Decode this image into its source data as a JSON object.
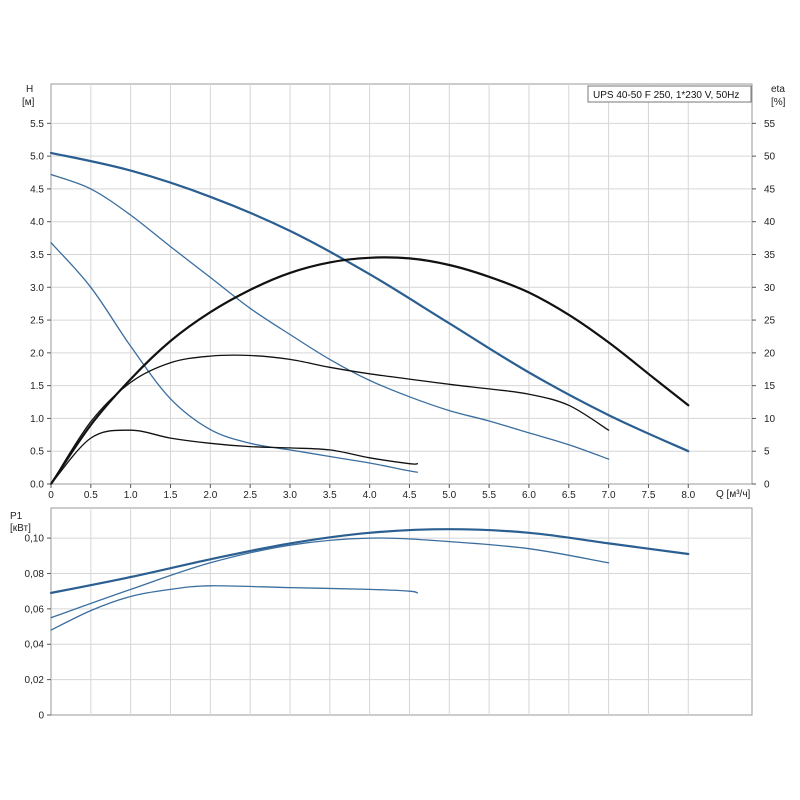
{
  "chart_data": [
    {
      "type": "line",
      "id": "head_efficiency",
      "legend_box": "UPS 40-50 F 250, 1*230 V, 50Hz",
      "legend_position": "top-right",
      "ylabel_left": [
        "H",
        "[м]"
      ],
      "ylabel_right": [
        "eta",
        "[%]"
      ],
      "xlabel": "Q [м³/ч]",
      "xlim": [
        0,
        8.8
      ],
      "ylim_left": [
        0,
        6.1
      ],
      "ylim_right": [
        0,
        61
      ],
      "grid": true,
      "x_ticks": [
        "0",
        "0.5",
        "1.0",
        "1.5",
        "2.0",
        "2.5",
        "3.0",
        "3.5",
        "4.0",
        "4.5",
        "5.0",
        "5.5",
        "6.0",
        "6.5",
        "7.0",
        "7.5",
        "8.0"
      ],
      "x_tick_values": [
        0,
        0.5,
        1.0,
        1.5,
        2.0,
        2.5,
        3.0,
        3.5,
        4.0,
        4.5,
        5.0,
        5.5,
        6.0,
        6.5,
        7.0,
        7.5,
        8.0
      ],
      "y_ticks_left": [
        "0.0",
        "0.5",
        "1.0",
        "1.5",
        "2.0",
        "2.5",
        "3.0",
        "3.5",
        "4.0",
        "4.5",
        "5.0",
        "5.5"
      ],
      "y_tick_values_left": [
        0,
        0.5,
        1.0,
        1.5,
        2.0,
        2.5,
        3.0,
        3.5,
        4.0,
        4.5,
        5.0,
        5.5
      ],
      "y_ticks_right": [
        "0",
        "5",
        "10",
        "15",
        "20",
        "25",
        "30",
        "35",
        "40",
        "45",
        "50",
        "55"
      ],
      "y_tick_values_right": [
        0,
        5,
        10,
        15,
        20,
        25,
        30,
        35,
        40,
        45,
        50,
        55
      ],
      "series": [
        {
          "axis": "left",
          "color": "#2b5f91",
          "width": 2.2,
          "points": [
            [
              0,
              5.05
            ],
            [
              1,
              4.78
            ],
            [
              2,
              4.38
            ],
            [
              3,
              3.86
            ],
            [
              4,
              3.2
            ],
            [
              5,
              2.45
            ],
            [
              6,
              1.7
            ],
            [
              7,
              1.05
            ],
            [
              8,
              0.5
            ]
          ]
        },
        {
          "axis": "left",
          "color": "#3a6e9f",
          "width": 1.3,
          "points": [
            [
              0,
              4.72
            ],
            [
              0.5,
              4.5
            ],
            [
              1,
              4.1
            ],
            [
              1.5,
              3.62
            ],
            [
              2,
              3.15
            ],
            [
              2.5,
              2.68
            ],
            [
              3,
              2.28
            ],
            [
              3.5,
              1.9
            ],
            [
              4,
              1.58
            ],
            [
              4.5,
              1.33
            ],
            [
              5,
              1.12
            ],
            [
              5.5,
              0.96
            ],
            [
              6,
              0.78
            ],
            [
              6.5,
              0.6
            ],
            [
              7,
              0.38
            ]
          ]
        },
        {
          "axis": "left",
          "color": "#3a6e9f",
          "width": 1.3,
          "points": [
            [
              0,
              3.68
            ],
            [
              0.5,
              3.0
            ],
            [
              1,
              2.1
            ],
            [
              1.5,
              1.3
            ],
            [
              2,
              0.83
            ],
            [
              2.5,
              0.62
            ],
            [
              3,
              0.52
            ],
            [
              3.5,
              0.42
            ],
            [
              4,
              0.32
            ],
            [
              4.5,
              0.2
            ],
            [
              4.6,
              0.18
            ]
          ]
        },
        {
          "axis": "right",
          "color": "#111111",
          "width": 2.2,
          "points": [
            [
              0,
              0
            ],
            [
              0.5,
              9
            ],
            [
              1,
              16
            ],
            [
              1.5,
              21.8
            ],
            [
              2,
              26.2
            ],
            [
              2.5,
              29.6
            ],
            [
              3,
              32.2
            ],
            [
              3.5,
              33.8
            ],
            [
              4,
              34.5
            ],
            [
              4.5,
              34.4
            ],
            [
              5,
              33.4
            ],
            [
              5.5,
              31.6
            ],
            [
              6,
              29.2
            ],
            [
              6.5,
              25.8
            ],
            [
              7,
              21.6
            ],
            [
              7.5,
              16.8
            ],
            [
              8,
              12
            ]
          ]
        },
        {
          "axis": "right",
          "color": "#111111",
          "width": 1.3,
          "points": [
            [
              0,
              0
            ],
            [
              0.5,
              9.5
            ],
            [
              1,
              15.5
            ],
            [
              1.5,
              18.5
            ],
            [
              2,
              19.5
            ],
            [
              2.5,
              19.6
            ],
            [
              3,
              19
            ],
            [
              3.5,
              17.8
            ],
            [
              4,
              16.8
            ],
            [
              4.5,
              16
            ],
            [
              5,
              15.2
            ],
            [
              5.5,
              14.5
            ],
            [
              6,
              13.7
            ],
            [
              6.5,
              12
            ],
            [
              7,
              8.2
            ]
          ]
        },
        {
          "axis": "right",
          "color": "#111111",
          "width": 1.3,
          "points": [
            [
              0,
              0
            ],
            [
              0.5,
              7
            ],
            [
              1,
              8.2
            ],
            [
              1.5,
              7
            ],
            [
              2,
              6.2
            ],
            [
              2.5,
              5.7
            ],
            [
              3,
              5.5
            ],
            [
              3.5,
              5.2
            ],
            [
              4,
              4
            ],
            [
              4.5,
              3.1
            ],
            [
              4.6,
              3.1
            ]
          ]
        }
      ]
    },
    {
      "type": "line",
      "id": "power",
      "ylabel": [
        "P1",
        "[кВт]"
      ],
      "xlim": [
        0,
        8.8
      ],
      "ylim": [
        0,
        0.117
      ],
      "grid": true,
      "y_ticks": [
        "0",
        "0,02",
        "0,04",
        "0,06",
        "0,08",
        "0,10"
      ],
      "y_tick_values": [
        0,
        0.02,
        0.04,
        0.06,
        0.08,
        0.1
      ],
      "series": [
        {
          "color": "#2b5f91",
          "width": 2.2,
          "points": [
            [
              0,
              0.069
            ],
            [
              1,
              0.078
            ],
            [
              2,
              0.088
            ],
            [
              3,
              0.097
            ],
            [
              4,
              0.103
            ],
            [
              5,
              0.105
            ],
            [
              6,
              0.103
            ],
            [
              7,
              0.097
            ],
            [
              8,
              0.091
            ]
          ]
        },
        {
          "color": "#3a6e9f",
          "width": 1.3,
          "points": [
            [
              0,
              0.055
            ],
            [
              1,
              0.071
            ],
            [
              2,
              0.086
            ],
            [
              3,
              0.096
            ],
            [
              4,
              0.1
            ],
            [
              5,
              0.098
            ],
            [
              6,
              0.094
            ],
            [
              7,
              0.086
            ]
          ]
        },
        {
          "color": "#3a6e9f",
          "width": 1.3,
          "points": [
            [
              0,
              0.048
            ],
            [
              0.5,
              0.059
            ],
            [
              1,
              0.067
            ],
            [
              1.5,
              0.071
            ],
            [
              2,
              0.073
            ],
            [
              3,
              0.072
            ],
            [
              4,
              0.071
            ],
            [
              4.5,
              0.07
            ],
            [
              4.6,
              0.069
            ]
          ]
        }
      ]
    }
  ]
}
